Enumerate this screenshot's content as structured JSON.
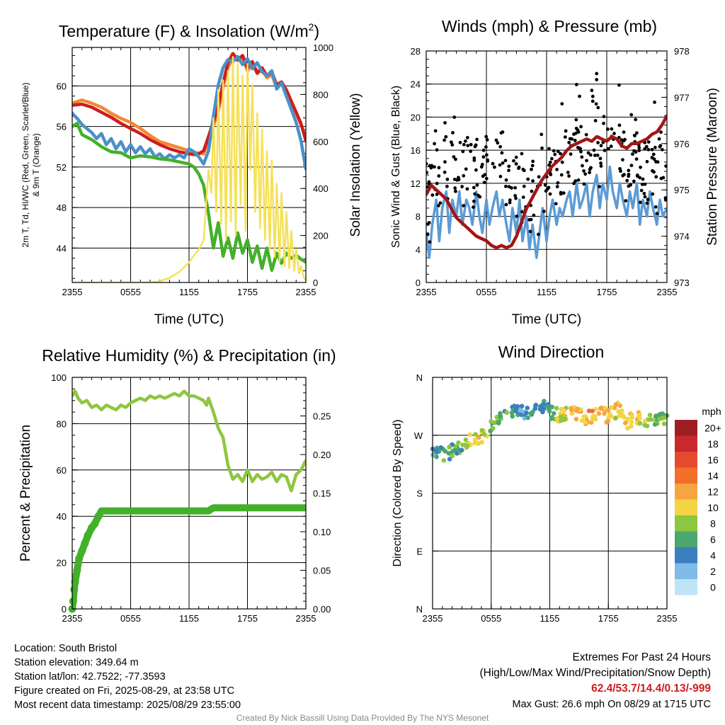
{
  "chart_data": [
    {
      "type": "line",
      "title": "Temperature (F) & Insolation (W/m²)",
      "title_base": "Temperature (F) & Insolation (W/m",
      "title_sup": "2",
      "title_end": ")",
      "xlabel": "Time (UTC)",
      "ylabel_lines": [
        "2m T, Td, HI/WC (Red, Green, Scarlet/Blue)",
        "& 9m T (Orange)"
      ],
      "y2label": "Solar Insolation (Yellow)",
      "xticks": [
        "2355",
        "0555",
        "1155",
        "1755",
        "2355"
      ],
      "yticks": [
        44,
        48,
        52,
        56,
        60
      ],
      "y2ticks": [
        0,
        200,
        400,
        600,
        800,
        1000
      ],
      "ylim": [
        40.6,
        63.8
      ],
      "y2lim": [
        0,
        1000
      ],
      "xlim": [
        0,
        24
      ],
      "series": [
        {
          "color": "#f58634",
          "width": 4.5,
          "axis": "left",
          "x": [
            0,
            1,
            2,
            3,
            4,
            5,
            6,
            7,
            8,
            9,
            10,
            11,
            12,
            12.8,
            13.5,
            14,
            15,
            15.5,
            16,
            16.5,
            17,
            17.5,
            18,
            18.5,
            19,
            19.5,
            20,
            20.5,
            21,
            21.5,
            22,
            22.5,
            23,
            23.5,
            24
          ],
          "y": [
            58.3,
            58.6,
            58.3,
            57.9,
            57.3,
            56.8,
            56.4,
            55.8,
            55.1,
            54.5,
            54.2,
            53.9,
            53.6,
            53.4,
            53.3,
            54.6,
            57.5,
            59.8,
            61.8,
            62.8,
            62.5,
            62.8,
            61.5,
            62.2,
            61.2,
            61.6,
            60.8,
            61.1,
            59.8,
            60.2,
            59.4,
            58.3,
            57.3,
            56.2,
            54.9
          ]
        },
        {
          "color": "#cc1e1e",
          "width": 4.5,
          "axis": "left",
          "x": [
            0,
            1,
            2,
            3,
            4,
            5,
            6,
            7,
            8,
            9,
            10,
            11,
            12,
            12.8,
            13.5,
            14,
            15,
            15.5,
            16,
            16.5,
            17,
            17.5,
            18,
            18.5,
            19,
            19.5,
            20,
            20.5,
            21,
            21.5,
            22,
            22.5,
            23,
            23.5,
            24
          ],
          "y": [
            58.1,
            58.2,
            57.9,
            57.4,
            56.9,
            56.3,
            55.8,
            55.3,
            54.7,
            54.2,
            53.8,
            53.5,
            53.3,
            53.2,
            53.6,
            55.0,
            58.0,
            60.3,
            62.3,
            63.2,
            62.6,
            63.0,
            61.8,
            62.4,
            61.3,
            61.8,
            61.0,
            61.4,
            60.1,
            60.4,
            59.6,
            58.5,
            57.4,
            56.3,
            54.6
          ]
        },
        {
          "color": "#4a90c8",
          "width": 4.5,
          "axis": "left",
          "x": [
            0,
            0.5,
            1,
            1.5,
            2,
            2.5,
            3,
            3.5,
            4,
            4.5,
            5,
            5.5,
            6,
            6.5,
            7,
            7.5,
            8,
            8.5,
            9,
            9.5,
            10,
            10.5,
            11,
            11.5,
            12,
            12.5,
            13,
            13.5,
            14,
            14.5,
            15,
            15.5,
            16,
            16.5,
            17,
            17.5,
            18,
            18.5,
            19,
            19.5,
            20,
            20.5,
            21,
            21.5,
            22,
            22.5,
            23,
            23.5,
            24
          ],
          "y": [
            57.3,
            56.8,
            56.2,
            55.8,
            55.4,
            54.8,
            55.3,
            54.2,
            54.8,
            53.8,
            54.5,
            53.5,
            54.2,
            53.4,
            54.0,
            53.3,
            53.8,
            53.0,
            53.3,
            52.8,
            53.2,
            52.9,
            53.2,
            52.9,
            53.8,
            53.5,
            53.0,
            52.3,
            53.6,
            57.0,
            60.1,
            61.8,
            62.6,
            62.4,
            62.9,
            62.1,
            62.7,
            61.7,
            62.3,
            61.4,
            61.0,
            61.5,
            59.7,
            60.3,
            59.0,
            57.7,
            56.4,
            54.6,
            51.8
          ]
        },
        {
          "color": "#43b02a",
          "width": 4.5,
          "axis": "left",
          "x": [
            0,
            0.5,
            1,
            2,
            3,
            4,
            5,
            6,
            7,
            8,
            9,
            10,
            11,
            12,
            12.5,
            13,
            13.5,
            14,
            14.5,
            15,
            15.5,
            16,
            16.5,
            17,
            17.5,
            18,
            18.5,
            19,
            19.5,
            20,
            20.5,
            21,
            21.5,
            22,
            22.5,
            23,
            23.5,
            24
          ],
          "y": [
            56.0,
            56.3,
            55.2,
            54.7,
            54.0,
            53.5,
            53.4,
            52.9,
            53.1,
            53.0,
            52.8,
            52.7,
            52.5,
            52.3,
            52.0,
            51.3,
            50.2,
            47.4,
            44.0,
            46.5,
            43.2,
            45.0,
            43.0,
            45.5,
            43.5,
            44.8,
            42.6,
            44.2,
            42.0,
            44.0,
            41.8,
            43.5,
            42.5,
            43.5,
            43.0,
            43.3,
            42.9,
            42.6
          ]
        },
        {
          "color": "#f5e15a",
          "width": 2.5,
          "axis": "right",
          "x": [
            0,
            8,
            9,
            10,
            11,
            12,
            12.5,
            13,
            13.5,
            14,
            14.3,
            14.5,
            14.8,
            15,
            15.3,
            15.5,
            15.8,
            16,
            16.3,
            16.5,
            16.8,
            17,
            17.3,
            17.5,
            17.8,
            18,
            18.3,
            18.5,
            18.8,
            19,
            19.3,
            19.5,
            19.8,
            20,
            20.3,
            20.5,
            20.8,
            21,
            21.3,
            21.5,
            21.8,
            22,
            22.3,
            22.5,
            22.8,
            23,
            23.3,
            23.5,
            23.8,
            24
          ],
          "y": [
            0,
            0,
            5,
            20,
            45,
            85,
            115,
            140,
            180,
            480,
            380,
            700,
            300,
            820,
            250,
            860,
            180,
            900,
            260,
            960,
            200,
            930,
            330,
            880,
            220,
            930,
            480,
            840,
            300,
            720,
            230,
            650,
            180,
            560,
            140,
            520,
            110,
            420,
            90,
            380,
            70,
            300,
            60,
            220,
            50,
            140,
            40,
            70,
            20,
            10
          ]
        }
      ]
    },
    {
      "type": "line",
      "title": "Winds (mph) & Pressure (mb)",
      "xlabel": "Time (UTC)",
      "ylabel": "Sonic Wind & Gust (Blue, Black)",
      "y2label": "Station Pressure (Maroon)",
      "xticks": [
        "2355",
        "0555",
        "1155",
        "1755",
        "2355"
      ],
      "yticks": [
        0,
        4,
        8,
        12,
        16,
        20,
        24,
        28
      ],
      "y2ticks": [
        973,
        974,
        975,
        976,
        977,
        978
      ],
      "ylim": [
        0,
        28
      ],
      "y2lim": [
        973,
        978
      ],
      "xlim": [
        0,
        24
      ],
      "series": [
        {
          "name": "",
          "color": "#5b9bd5",
          "width": 3.5,
          "axis": "left",
          "x": [
            0,
            0.3,
            0.6,
            1,
            1.3,
            1.6,
            2,
            2.3,
            2.6,
            3,
            3.3,
            3.6,
            4,
            4.3,
            4.6,
            5,
            5.3,
            5.6,
            6,
            6.3,
            6.6,
            7,
            7.3,
            7.6,
            8,
            8.3,
            8.6,
            9,
            9.3,
            9.6,
            10,
            10.3,
            10.6,
            11,
            11.3,
            11.6,
            12,
            12.3,
            12.6,
            13,
            13.3,
            13.6,
            14,
            14.3,
            14.6,
            15,
            15.3,
            15.6,
            16,
            16.3,
            16.6,
            17,
            17.3,
            17.6,
            18,
            18.3,
            18.6,
            19,
            19.3,
            19.6,
            20,
            20.3,
            20.6,
            21,
            21.3,
            21.6,
            22,
            22.3,
            22.6,
            23,
            23.3,
            23.6,
            24
          ],
          "y": [
            6,
            3,
            7,
            10,
            5,
            9,
            11,
            6,
            10,
            8,
            11,
            7,
            10,
            9,
            7,
            11,
            8,
            6,
            10,
            7,
            9,
            11,
            8,
            10,
            7,
            5,
            9,
            6,
            10,
            5,
            8,
            4,
            7,
            3,
            6,
            9,
            5,
            8,
            10,
            7,
            9,
            8,
            10,
            11,
            8,
            12,
            9,
            10,
            12,
            8,
            11,
            13,
            9,
            12,
            10,
            14,
            11,
            9,
            12,
            10,
            8,
            11,
            9,
            12,
            7,
            10,
            8,
            11,
            9,
            7,
            10,
            8,
            9
          ]
        },
        {
          "name": "",
          "color": "#a31515",
          "width": 4.5,
          "axis": "right",
          "x": [
            0,
            0.5,
            1,
            1.5,
            2,
            2.5,
            3,
            3.5,
            4,
            4.5,
            5,
            5.5,
            6,
            6.5,
            7,
            7.5,
            8,
            8.5,
            9,
            9.5,
            10,
            10.5,
            11,
            11.5,
            12,
            12.5,
            13,
            13.5,
            14,
            14.5,
            15,
            15.5,
            16,
            16.5,
            17,
            17.5,
            18,
            18.5,
            19,
            19.5,
            20,
            20.5,
            21,
            21.5,
            22,
            22.5,
            23,
            23.5,
            24
          ],
          "y": [
            974.9,
            975.1,
            975.0,
            974.9,
            974.8,
            974.6,
            974.4,
            974.3,
            974.2,
            974.1,
            974.0,
            973.95,
            973.9,
            973.8,
            973.75,
            973.8,
            973.75,
            973.8,
            974.0,
            974.3,
            974.6,
            974.8,
            975.0,
            975.2,
            975.35,
            975.5,
            975.6,
            975.7,
            975.85,
            975.95,
            976.0,
            976.05,
            976.1,
            976.05,
            976.15,
            976.1,
            976.05,
            976.15,
            976.1,
            975.95,
            975.9,
            976.0,
            976.0,
            976.05,
            976.1,
            976.2,
            976.25,
            976.4,
            976.6
          ]
        }
      ]
    },
    {
      "type": "line",
      "title": "Relative Humidity (%) & Precipitation (in)",
      "ylabel": "Percent & Precipitation",
      "xticks": [
        "2355",
        "0555",
        "1155",
        "1755",
        "2355"
      ],
      "yticks": [
        0,
        20,
        40,
        60,
        80,
        100
      ],
      "y2ticks": [
        "0.00",
        "0.05",
        "0.10",
        "0.15",
        "0.20",
        "0.25"
      ],
      "ylim": [
        0,
        100
      ],
      "y2lim": [
        0,
        0.3
      ],
      "xlim": [
        0,
        24
      ],
      "series": [
        {
          "color": "#8dc63f",
          "width": 4.5,
          "axis": "left",
          "x": [
            0,
            0.3,
            0.6,
            1,
            1.5,
            2,
            2.5,
            3,
            3.5,
            4,
            4.5,
            5,
            5.5,
            6,
            6.5,
            7,
            7.5,
            8,
            8.5,
            9,
            9.5,
            10,
            10.5,
            11,
            11.5,
            12,
            12.5,
            13,
            13.5,
            13.8,
            14,
            14.5,
            15,
            15.5,
            16,
            16.5,
            17,
            17.5,
            18,
            18.5,
            19,
            19.5,
            20,
            20.5,
            21,
            21.5,
            22,
            22.5,
            23,
            23.5,
            24
          ],
          "y": [
            92,
            94,
            91,
            89,
            90,
            87,
            88,
            86,
            88,
            87,
            86,
            88,
            87,
            89,
            90,
            91,
            90,
            92,
            91,
            92,
            91,
            92,
            93,
            92,
            94,
            92,
            92,
            91,
            90,
            88,
            91,
            85,
            78,
            74,
            62,
            56,
            58,
            55,
            60,
            55,
            58,
            56,
            57,
            59,
            55,
            58,
            57,
            51,
            58,
            60,
            64
          ]
        },
        {
          "color": "#43b02a",
          "width": 10,
          "axis": "right",
          "x": [
            0,
            0.1,
            0.2,
            0.3,
            0.5,
            0.7,
            1,
            1.3,
            1.6,
            2,
            2.3,
            2.7,
            3,
            14,
            14.5,
            24
          ],
          "y": [
            0.0,
            0.01,
            0.025,
            0.035,
            0.05,
            0.065,
            0.075,
            0.085,
            0.095,
            0.105,
            0.11,
            0.12,
            0.127,
            0.127,
            0.131,
            0.131
          ]
        }
      ]
    },
    {
      "type": "scatter",
      "title": "Wind Direction",
      "ylabel": "Direction (Colored By Speed)",
      "xticks": [
        "2355",
        "0555",
        "1155",
        "1755",
        "2355"
      ],
      "yticks": [
        "N",
        "E",
        "S",
        "W",
        "N"
      ],
      "ylim": [
        0,
        360
      ],
      "xlim": [
        0,
        24
      ],
      "colorbar_title": "mph",
      "colorbar_labels": [
        "20+",
        "18",
        "16",
        "14",
        "12",
        "10",
        "8",
        "6",
        "4",
        "2",
        "0"
      ],
      "colorbar_colors": [
        "#9e1f23",
        "#c9282e",
        "#e64a2e",
        "#f36e2a",
        "#f7a540",
        "#f3d544",
        "#8dc63f",
        "#4aa76d",
        "#3b7fc1",
        "#7fbbe6",
        "#bfe3f7"
      ]
    }
  ],
  "info": {
    "location": "Location: South Bristol",
    "elevation": "Station elevation: 349.64 m",
    "latlon": "Station lat/lon: 42.7522; -77.3593",
    "created": "Figure created on Fri, 2025-08-29, at 23:58 UTC",
    "recent": "Most recent data timestamp: 2025/08/29 23:55:00"
  },
  "extremes": {
    "title": "Extremes For Past 24 Hours",
    "subtitle": "(High/Low/Max Wind/Precipitation/Snow Depth)",
    "values": "62.4/53.7/14.4/0.13/-999",
    "values_color": "#cc1e1e",
    "gust": "Max Gust: 26.6 mph On 08/29 at 1715 UTC"
  },
  "credit": "Created By Nick Bassill Using Data Provided By The NYS Mesonet"
}
